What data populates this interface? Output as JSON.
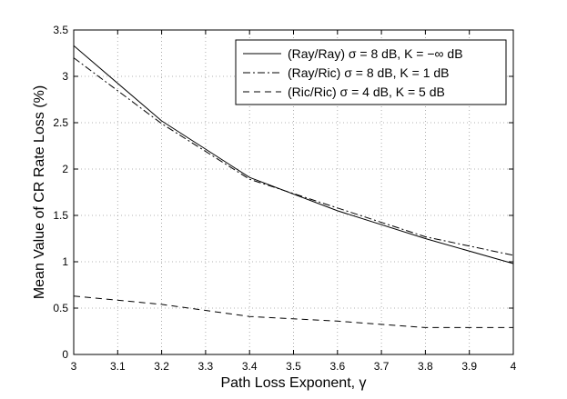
{
  "chart_data": {
    "type": "line",
    "xlabel": "Path Loss Exponent, γ",
    "ylabel": "Mean Value of CR Rate Loss (%)",
    "xlim": [
      3,
      4
    ],
    "ylim": [
      0,
      3.5
    ],
    "xticks": [
      "3",
      "3.1",
      "3.2",
      "3.3",
      "3.4",
      "3.5",
      "3.6",
      "3.7",
      "3.8",
      "3.9",
      "4"
    ],
    "yticks": [
      "0",
      "0.5",
      "1",
      "1.5",
      "2",
      "2.5",
      "3",
      "3.5"
    ],
    "grid": true,
    "legend_position": "top-right",
    "x": [
      3.0,
      3.2,
      3.4,
      3.6,
      3.8,
      4.0
    ],
    "series": [
      {
        "name": "(Ray/Ray) σ = 8 dB, K = −∞ dB",
        "style": "solid",
        "values": [
          3.33,
          2.52,
          1.91,
          1.55,
          1.25,
          0.98
        ]
      },
      {
        "name": "(Ray/Ric) σ = 8 dB, K = 1 dB",
        "style": "dashdot",
        "values": [
          3.2,
          2.49,
          1.89,
          1.58,
          1.27,
          1.07
        ]
      },
      {
        "name": "(Ric/Ric) σ = 4 dB, K = 5 dB",
        "style": "dashed",
        "values": [
          0.63,
          0.54,
          0.41,
          0.36,
          0.29,
          0.29
        ]
      }
    ]
  }
}
